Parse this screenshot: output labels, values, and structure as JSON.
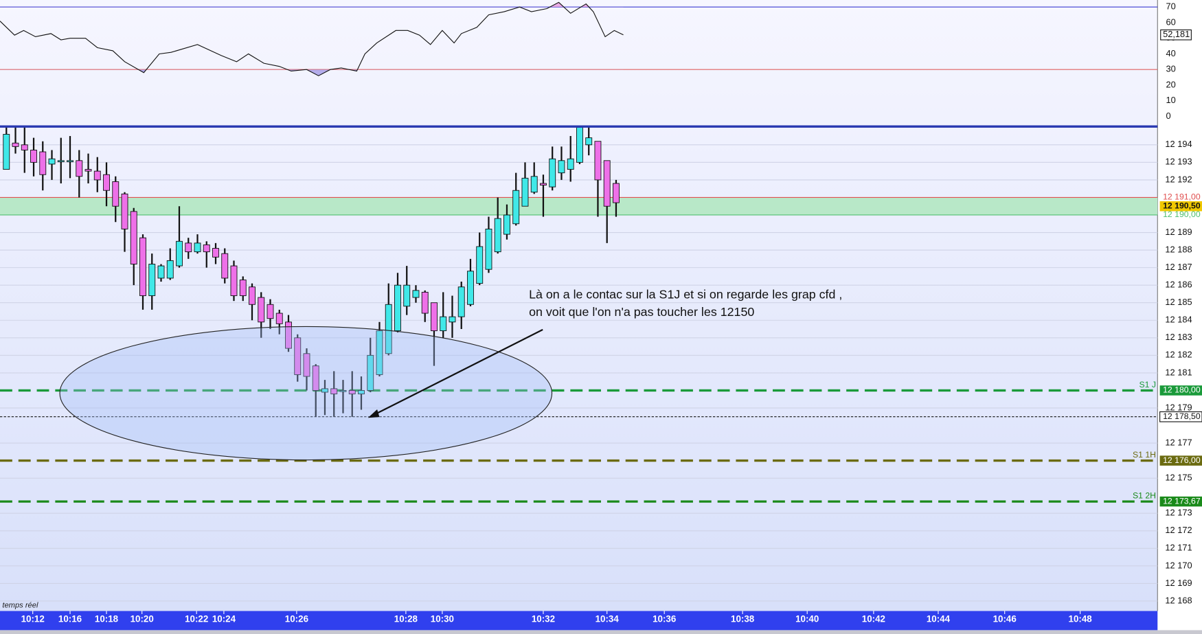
{
  "chart_data": [
    {
      "type": "line",
      "x": [
        -0.7,
        0.9,
        1.9,
        3.2,
        4.9,
        6,
        7,
        8.7,
        10,
        11.7,
        13,
        15.1,
        16.8,
        18.1,
        21,
        23.6,
        25.3,
        26.6,
        28.3,
        30,
        31.3,
        33,
        34.3,
        35.6,
        36.8,
        38.5,
        39.4,
        40.7,
        42.8,
        44.1,
        45.4,
        46.6,
        47.9,
        49.2,
        50,
        51.7,
        53,
        54.7,
        56.4,
        57.7,
        59.4,
        60.7,
        62,
        63.7,
        64.5,
        65.8,
        66.8,
        67.8
      ],
      "values": [
        61,
        52,
        55,
        51,
        53,
        49,
        50,
        50,
        44,
        42,
        35,
        28,
        40,
        41,
        46,
        39,
        35,
        40,
        34,
        32,
        29,
        30,
        26,
        30,
        31,
        29,
        40,
        47,
        55,
        55,
        52,
        46,
        55,
        47,
        53,
        57,
        65,
        67,
        70,
        67,
        69,
        73,
        66,
        72,
        67,
        51,
        55,
        52.181
      ],
      "color": "#111111",
      "xlim": [
        -0.7,
        126.5
      ],
      "ylim": [
        -5,
        74.5
      ],
      "yticks": [
        0,
        10,
        20,
        30,
        40,
        50,
        60,
        70
      ],
      "levels": [
        {
          "value": 70,
          "color": "#3a3ad0",
          "fill": "#e8a0e0"
        },
        {
          "value": 30,
          "color": "#e06060",
          "fill": "#a8a0e8"
        }
      ],
      "last": {
        "value": 52.181,
        "label": "52,181"
      }
    },
    {
      "type": "candlestick",
      "open": [
        12192.6,
        12194.1,
        12194,
        12193.7,
        12193.6,
        12192.9,
        12193.1,
        12193.1,
        12193.1,
        12192.6,
        12192.5,
        12192.3,
        12191.9,
        12191.2,
        12190.2,
        12188.7,
        12185.4,
        12186.4,
        12186.4,
        12187.1,
        12188.4,
        12187.9,
        12188.3,
        12188.1,
        12187.8,
        12187.1,
        12186.3,
        12185.9,
        12185.3,
        12184.9,
        12184.4,
        12183.9,
        12183,
        12182.1,
        12181.4,
        12179.9,
        12180.1,
        12180,
        12180,
        12179.8,
        12180,
        12180.9,
        12182.1,
        12183.4,
        12184.8,
        12185.3,
        12185.6,
        12185,
        12183.4,
        12183.9,
        12184.2,
        12184.9,
        12186.1,
        12186.9,
        12187.9,
        12188.9,
        12189.5,
        12190.5,
        12191.3,
        12191.8,
        12191.6,
        12192.4,
        12192.6,
        12193,
        12194,
        12194.2,
        12193.1,
        12191.8
      ],
      "high": [
        12195,
        12195,
        12195,
        12194.4,
        12194.2,
        12193.7,
        12194.4,
        12194.5,
        12193.7,
        12193.5,
        12193.3,
        12193,
        12192.2,
        12191.3,
        12190.4,
        12188.9,
        12187.8,
        12187.2,
        12188.1,
        12190.5,
        12188.7,
        12188.9,
        12188.5,
        12188.4,
        12188.1,
        12187.4,
        12186.5,
        12186.1,
        12185.6,
        12185.2,
        12184.6,
        12184.3,
        12183.2,
        12182.4,
        12181.5,
        12180.6,
        12181.1,
        12180.6,
        12181.1,
        12180.8,
        12183,
        12183.9,
        12186.1,
        12186.7,
        12187.1,
        12186,
        12185.7,
        12185,
        12185.6,
        12185.4,
        12186.2,
        12187.5,
        12189,
        12189.9,
        12191,
        12190.6,
        12192.4,
        12193,
        12193,
        12192.3,
        12193.9,
        12193.9,
        12194.5,
        12195,
        12195,
        12194.2,
        12193.1,
        12192
      ],
      "low": [
        12192.6,
        12193.5,
        12192.4,
        12192.2,
        12191.4,
        12192,
        12191.8,
        12192.1,
        12191,
        12191.8,
        12191.3,
        12190.5,
        12189.6,
        12187.9,
        12186,
        12184.6,
        12184.6,
        12186.2,
        12186.3,
        12187,
        12187.5,
        12187.8,
        12187,
        12187.2,
        12186.1,
        12185.1,
        12185.1,
        12184,
        12183,
        12183.5,
        12183.2,
        12182.2,
        12180.5,
        12180,
        12178.5,
        12178.6,
        12178.5,
        12178.7,
        12178.5,
        12178.9,
        12179.9,
        12180.8,
        12182,
        12183.3,
        12184.3,
        12185,
        12183.9,
        12181.4,
        12183,
        12183,
        12183.5,
        12184.8,
        12186,
        12186.7,
        12187.8,
        12188.6,
        12189.4,
        12190.5,
        12191.2,
        12189.9,
        12191.4,
        12192,
        12191.9,
        12192.9,
        12193.4,
        12189.9,
        12188.4,
        12189.9
      ],
      "close": [
        12194.6,
        12193.9,
        12193.7,
        12193,
        12192.3,
        12193.2,
        12193.1,
        12193.1,
        12192.2,
        12192.5,
        12192,
        12191.4,
        12190.5,
        12189.2,
        12187.2,
        12185.4,
        12187.2,
        12187.1,
        12187.4,
        12188.5,
        12187.9,
        12188.4,
        12187.9,
        12187.6,
        12186.4,
        12185.4,
        12185.4,
        12184.9,
        12183.9,
        12184.1,
        12183.8,
        12182.4,
        12180.9,
        12180.8,
        12180,
        12180.1,
        12179.8,
        12180,
        12179.8,
        12180,
        12182,
        12183.4,
        12184.9,
        12186,
        12186,
        12185.7,
        12184.4,
        12183.4,
        12184.2,
        12184.2,
        12185.9,
        12186.8,
        12188.2,
        12189.2,
        12189.8,
        12190,
        12191.4,
        12192.1,
        12192.2,
        12191.7,
        12193.2,
        12193.1,
        12193.2,
        12195,
        12194.4,
        12192,
        12190.5,
        12190.7
      ],
      "up_color": "#40e8e8",
      "down_color": "#ee70e8",
      "xlim": [
        -0.7,
        126.5
      ],
      "ylim": [
        12167.43,
        12195
      ],
      "xticks": [
        {
          "value": 2.9,
          "label": "10:12"
        },
        {
          "value": 7,
          "label": "10:16"
        },
        {
          "value": 11,
          "label": "10:18"
        },
        {
          "value": 14.9,
          "label": "10:20"
        },
        {
          "value": 20.9,
          "label": "10:22"
        },
        {
          "value": 23.9,
          "label": "10:24"
        },
        {
          "value": 31.9,
          "label": "10:26"
        },
        {
          "value": 43.9,
          "label": "10:28"
        },
        {
          "value": 47.9,
          "label": "10:30"
        },
        {
          "value": 59,
          "label": "10:32"
        },
        {
          "value": 66,
          "label": "10:34"
        },
        {
          "value": 72.3,
          "label": "10:36"
        },
        {
          "value": 80.9,
          "label": "10:38"
        },
        {
          "value": 88,
          "label": "10:40"
        },
        {
          "value": 95.3,
          "label": "10:42"
        },
        {
          "value": 102.4,
          "label": "10:44"
        },
        {
          "value": 109.7,
          "label": "10:46"
        },
        {
          "value": 118,
          "label": "10:48"
        }
      ],
      "yticks": [
        {
          "value": 12194,
          "label": "12 194"
        },
        {
          "value": 12193,
          "label": "12 193"
        },
        {
          "value": 12192,
          "label": "12 192"
        },
        {
          "value": 12189,
          "label": "12 189"
        },
        {
          "value": 12188,
          "label": "12 188"
        },
        {
          "value": 12187,
          "label": "12 187"
        },
        {
          "value": 12186,
          "label": "12 186"
        },
        {
          "value": 12185,
          "label": "12 185"
        },
        {
          "value": 12184,
          "label": "12 184"
        },
        {
          "value": 12183,
          "label": "12 183"
        },
        {
          "value": 12182,
          "label": "12 182"
        },
        {
          "value": 12181,
          "label": "12 181"
        },
        {
          "value": 12179,
          "label": "12 179"
        },
        {
          "value": 12177,
          "label": "12 177"
        },
        {
          "value": 12175,
          "label": "12 175"
        },
        {
          "value": 12173,
          "label": "12 173"
        },
        {
          "value": 12172,
          "label": "12 172"
        },
        {
          "value": 12171,
          "label": "12 171"
        },
        {
          "value": 12170,
          "label": "12 170"
        },
        {
          "value": 12169,
          "label": "12 169"
        },
        {
          "value": 12168,
          "label": "12 168"
        }
      ],
      "grid": true,
      "zone": {
        "from": 12190,
        "to": 12191,
        "color": "#b8e8c8"
      },
      "lines": [
        {
          "value": 12191,
          "label": "12 191,00",
          "color": "#e05050",
          "style": "solid"
        },
        {
          "value": 12190.5,
          "label": "12 190,50",
          "color": "#f0c800",
          "style": "none"
        },
        {
          "value": 12190,
          "label": "12 190,00",
          "color": "#50c070",
          "style": "solid"
        },
        {
          "name": "S1 J",
          "value": 12180,
          "label": "12 180,00",
          "color": "#1a9a3a",
          "style": "dashed"
        },
        {
          "value": 12178.5,
          "label": "12 178,50",
          "color": "#111111",
          "style": "dotted"
        },
        {
          "name": "S1 1H",
          "value": 12176,
          "label": "12 176,00",
          "color": "#6b6b10",
          "style": "dashed"
        },
        {
          "name": "S1 2H",
          "value": 12173.67,
          "label": "12 173,67",
          "color": "#1a8a1a",
          "style": "dashed"
        }
      ],
      "annotation": [
        "Là on a le contac sur la S1J et si on regarde les grap cfd ,",
        "on voit que l'on n'a pas toucher les 12150"
      ],
      "footer": "temps réel"
    }
  ]
}
